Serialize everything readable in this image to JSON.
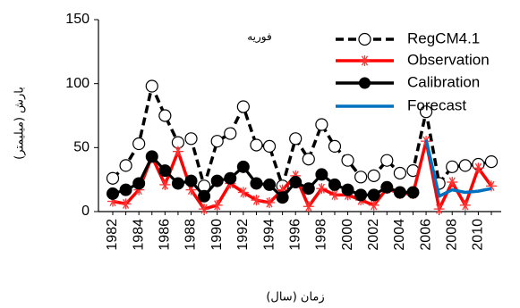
{
  "chart_data": {
    "type": "line",
    "annotation": "فوريه",
    "xlabel": "زمان (سال)",
    "ylabel": "بارش (ميليمتر)",
    "ylim": [
      0,
      150
    ],
    "yticks": [
      0,
      50,
      100,
      150
    ],
    "x": [
      1982,
      1983,
      1984,
      1985,
      1986,
      1987,
      1988,
      1989,
      1990,
      1991,
      1992,
      1993,
      1994,
      1995,
      1996,
      1997,
      1998,
      1999,
      2000,
      2001,
      2002,
      2003,
      2004,
      2005,
      2006,
      2007,
      2008,
      2009,
      2010,
      2011
    ],
    "xtick_labels": [
      "1982",
      "1984",
      "1986",
      "1988",
      "1990",
      "1992",
      "1994",
      "1996",
      "1998",
      "2000",
      "2002",
      "2004",
      "2006",
      "2008",
      "2010"
    ],
    "legend_position": "top-right",
    "grid": false,
    "series": [
      {
        "name": "RegCM4.1",
        "color": "#000000",
        "style": "dashed-open-circle",
        "x": [
          1982,
          1983,
          1984,
          1985,
          1986,
          1987,
          1988,
          1989,
          1990,
          1991,
          1992,
          1993,
          1994,
          1995,
          1996,
          1997,
          1998,
          1999,
          2000,
          2001,
          2002,
          2003,
          2004,
          2005,
          2006,
          2007,
          2008,
          2009,
          2010,
          2011
        ],
        "values": [
          26,
          36,
          53,
          98,
          75,
          54,
          57,
          20,
          55,
          61,
          82,
          52,
          51,
          20,
          57,
          41,
          68,
          51,
          40,
          27,
          28,
          40,
          30,
          32,
          78,
          22,
          35,
          36,
          37,
          39
        ]
      },
      {
        "name": "Observation",
        "color": "#ff0000",
        "style": "solid-asterisk",
        "x": [
          1982,
          1983,
          1984,
          1985,
          1986,
          1987,
          1988,
          1989,
          1990,
          1991,
          1992,
          1993,
          1994,
          1995,
          1996,
          1997,
          1998,
          1999,
          2000,
          2001,
          2002,
          2003,
          2004,
          2005,
          2006,
          2007,
          2008,
          2009,
          2010,
          2011
        ],
        "values": [
          8,
          6,
          17,
          43,
          21,
          47,
          17,
          2,
          5,
          22,
          15,
          9,
          7,
          17,
          28,
          4,
          18,
          13,
          13,
          9,
          5,
          18,
          14,
          14,
          55,
          2,
          23,
          5,
          34,
          20
        ]
      },
      {
        "name": "Calibration",
        "color": "#000000",
        "style": "solid-filled-circle",
        "x": [
          1982,
          1983,
          1984,
          1985,
          1986,
          1987,
          1988,
          1989,
          1990,
          1991,
          1992,
          1993,
          1994,
          1995,
          1996,
          1997,
          1998,
          1999,
          2000,
          2001,
          2002,
          2003,
          2004,
          2005
        ],
        "values": [
          14,
          17,
          22,
          43,
          32,
          22,
          24,
          12,
          24,
          26,
          35,
          22,
          21,
          11,
          23,
          18,
          29,
          21,
          17,
          13,
          13,
          19,
          15,
          15
        ]
      },
      {
        "name": "Forecast",
        "color": "#0070c0",
        "style": "solid-line",
        "x": [
          2006,
          2007,
          2008,
          2009,
          2010,
          2011
        ],
        "values": [
          56,
          12,
          17,
          15,
          16,
          18
        ]
      }
    ]
  }
}
